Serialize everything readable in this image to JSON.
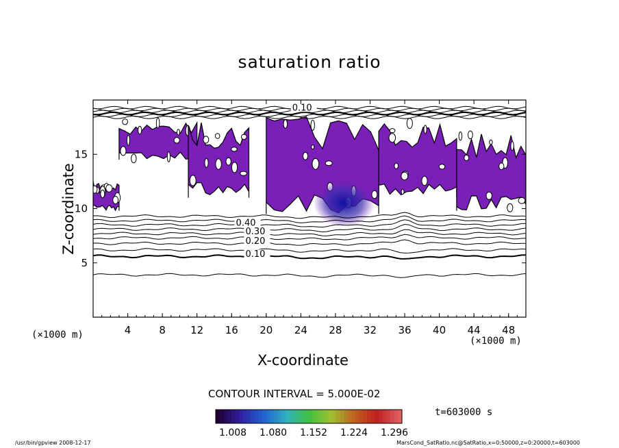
{
  "chart_data": {
    "type": "contour",
    "title": "saturation ratio",
    "xlabel": "X-coordinate",
    "ylabel": "Z-coordinate",
    "x_unit": "(×1000 m)",
    "y_unit": "(×1000 m)",
    "xlim": [
      0,
      50
    ],
    "ylim": [
      0,
      20
    ],
    "x_ticks": [
      4,
      8,
      12,
      16,
      20,
      24,
      28,
      32,
      36,
      40,
      44,
      48
    ],
    "y_ticks": [
      5,
      10,
      15
    ],
    "contour_interval_text": "CONTOUR INTERVAL = 5.000E-02",
    "contour_labels": [
      {
        "text": "0.10",
        "x": 17.6,
        "z": 5.6
      },
      {
        "text": "0.20",
        "x": 17.6,
        "z": 6.8
      },
      {
        "text": "0.30",
        "x": 17.6,
        "z": 7.7
      },
      {
        "text": "0.40",
        "x": 16.5,
        "z": 8.5
      },
      {
        "text": "0.10",
        "x": 23.0,
        "z": 19.1
      }
    ],
    "contour_levels_z": [
      3.9,
      5.6,
      6.2,
      6.8,
      7.3,
      7.7,
      8.1,
      8.5,
      8.9,
      9.3
    ],
    "supersaturated_regions": [
      {
        "x_range": [
          0,
          3
        ],
        "z_range": [
          9.8,
          12.5
        ]
      },
      {
        "x_range": [
          3,
          12
        ],
        "z_range": [
          14.5,
          18
        ]
      },
      {
        "x_range": [
          11,
          18
        ],
        "z_range": [
          11,
          18
        ]
      },
      {
        "x_range": [
          20,
          33
        ],
        "z_range": [
          9.5,
          18.5
        ]
      },
      {
        "x_range": [
          33,
          42
        ],
        "z_range": [
          11,
          18
        ]
      },
      {
        "x_range": [
          42,
          50
        ],
        "z_range": [
          9.8,
          17
        ]
      }
    ],
    "minimum_region": {
      "x": 29,
      "z": 10.5
    },
    "colorbar": {
      "tick_labels": [
        "1.008",
        "1.080",
        "1.152",
        "1.224",
        "1.296"
      ],
      "colors": [
        "#200030",
        "#3020a0",
        "#2060d0",
        "#30b0c0",
        "#40c040",
        "#a0c030",
        "#c06020",
        "#c02020",
        "#e06060"
      ]
    },
    "fill_color": "#7a1fb8",
    "time_label": "t=603000 s"
  },
  "footer": {
    "left": "/usr/bin/gpview  2008-12-17",
    "right": "MarsCond_SatRatio.nc@SatRatio,x=0:50000,z=0:20000,t=603000"
  }
}
